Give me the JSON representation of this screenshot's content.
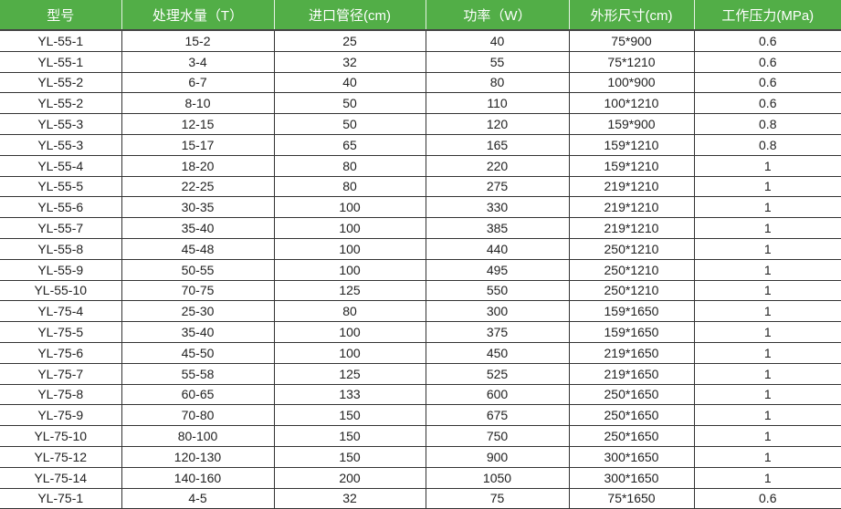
{
  "colors": {
    "header_bg": "#52ae47",
    "header_text": "#ffffff"
  },
  "table": {
    "headers": [
      "型号",
      "处理水量（T）",
      "进口管径(cm)",
      "功率（W）",
      "外形尺寸(cm)",
      "工作压力(MPa)"
    ],
    "rows": [
      [
        "YL-55-1",
        "15-2",
        "25",
        "40",
        "75*900",
        "0.6"
      ],
      [
        "YL-55-1",
        "3-4",
        "32",
        "55",
        "75*1210",
        "0.6"
      ],
      [
        "YL-55-2",
        "6-7",
        "40",
        "80",
        "100*900",
        "0.6"
      ],
      [
        "YL-55-2",
        "8-10",
        "50",
        "110",
        "100*1210",
        "0.6"
      ],
      [
        "YL-55-3",
        "12-15",
        "50",
        "120",
        "159*900",
        "0.8"
      ],
      [
        "YL-55-3",
        "15-17",
        "65",
        "165",
        "159*1210",
        "0.8"
      ],
      [
        "YL-55-4",
        "18-20",
        "80",
        "220",
        "159*1210",
        "1"
      ],
      [
        "YL-55-5",
        "22-25",
        "80",
        "275",
        "219*1210",
        "1"
      ],
      [
        "YL-55-6",
        "30-35",
        "100",
        "330",
        "219*1210",
        "1"
      ],
      [
        "YL-55-7",
        "35-40",
        "100",
        "385",
        "219*1210",
        "1"
      ],
      [
        "YL-55-8",
        "45-48",
        "100",
        "440",
        "250*1210",
        "1"
      ],
      [
        "YL-55-9",
        "50-55",
        "100",
        "495",
        "250*1210",
        "1"
      ],
      [
        "YL-55-10",
        "70-75",
        "125",
        "550",
        "250*1210",
        "1"
      ],
      [
        "YL-75-4",
        "25-30",
        "80",
        "300",
        "159*1650",
        "1"
      ],
      [
        "YL-75-5",
        "35-40",
        "100",
        "375",
        "159*1650",
        "1"
      ],
      [
        "YL-75-6",
        "45-50",
        "100",
        "450",
        "219*1650",
        "1"
      ],
      [
        "YL-75-7",
        "55-58",
        "125",
        "525",
        "219*1650",
        "1"
      ],
      [
        "YL-75-8",
        "60-65",
        "133",
        "600",
        "250*1650",
        "1"
      ],
      [
        "YL-75-9",
        "70-80",
        "150",
        "675",
        "250*1650",
        "1"
      ],
      [
        "YL-75-10",
        "80-100",
        "150",
        "750",
        "250*1650",
        "1"
      ],
      [
        "YL-75-12",
        "120-130",
        "150",
        "900",
        "300*1650",
        "1"
      ],
      [
        "YL-75-14",
        "140-160",
        "200",
        "1050",
        "300*1650",
        "1"
      ],
      [
        "YL-75-1",
        "4-5",
        "32",
        "75",
        "75*1650",
        "0.6"
      ]
    ]
  }
}
